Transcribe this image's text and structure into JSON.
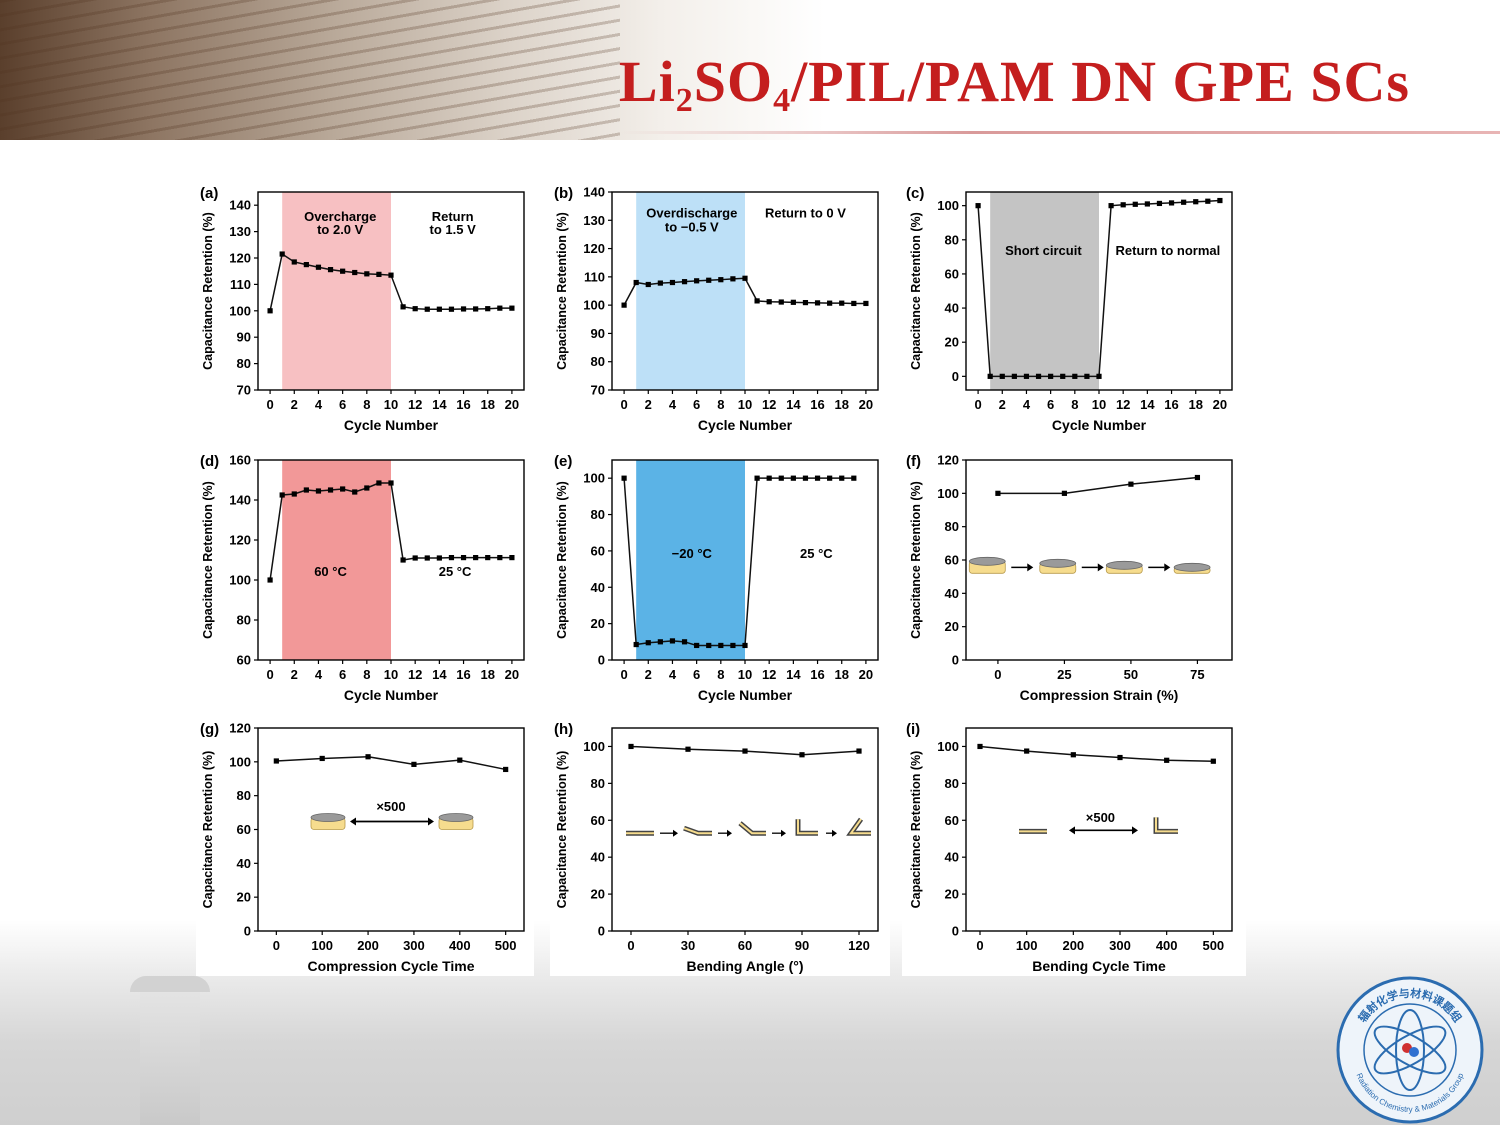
{
  "slide": {
    "title_prefix": "Li",
    "title_sub1": "2",
    "title_mid": "SO",
    "title_sub2": "4",
    "title_rest": "/PIL/PAM DN GPE SCs",
    "logo_text_top": "辐射化学与材料课题组",
    "logo_text_bottom": "Radiation Chemistry & Materials Group"
  },
  "colors": {
    "title": "#c41e1e",
    "overcharge_band": "#f7c0c2",
    "overdischarge_band": "#bde0f7",
    "short_band": "#c4c4c4",
    "heat_band": "#f29898",
    "cold_band": "#5bb3e6",
    "line": "#111111",
    "cap_gray": "#9a9a9a",
    "gel_yellow": "#f6dc8e"
  },
  "chart_data": [
    {
      "panel": "(a)",
      "type": "line",
      "xlabel": "Cycle Number",
      "ylabel": "Capacitance Retention (%)",
      "xlim": [
        -1,
        21
      ],
      "ylim": [
        70,
        145
      ],
      "xticks": [
        0,
        2,
        4,
        6,
        8,
        10,
        12,
        14,
        16,
        18,
        20
      ],
      "yticks": [
        70,
        80,
        90,
        100,
        110,
        120,
        130,
        140
      ],
      "band": {
        "from": 1,
        "to": 10,
        "color": "#f7c0c2"
      },
      "annotations": [
        {
          "text": "Overcharge",
          "x": 5.8,
          "y": 134
        },
        {
          "text": "to 2.0 V",
          "x": 5.8,
          "y": 129
        },
        {
          "text": "Return",
          "x": 15.1,
          "y": 134
        },
        {
          "text": "to 1.5 V",
          "x": 15.1,
          "y": 129
        }
      ],
      "x": [
        0,
        1,
        2,
        3,
        4,
        5,
        6,
        7,
        8,
        9,
        10,
        11,
        12,
        13,
        14,
        15,
        16,
        17,
        18,
        19,
        20
      ],
      "y": [
        100,
        121.5,
        118.5,
        117.5,
        116.5,
        115.6,
        115,
        114.5,
        114,
        113.8,
        113.5,
        101.5,
        100.8,
        100.6,
        100.6,
        100.6,
        100.7,
        100.7,
        100.8,
        101,
        101
      ]
    },
    {
      "panel": "(b)",
      "type": "line",
      "xlabel": "Cycle Number",
      "ylabel": "Capacitance Retention (%)",
      "xlim": [
        -1,
        21
      ],
      "ylim": [
        70,
        140
      ],
      "xticks": [
        0,
        2,
        4,
        6,
        8,
        10,
        12,
        14,
        16,
        18,
        20
      ],
      "yticks": [
        70,
        80,
        90,
        100,
        110,
        120,
        130,
        140
      ],
      "band": {
        "from": 1,
        "to": 10,
        "color": "#bde0f7"
      },
      "annotations": [
        {
          "text": "Overdischarge",
          "x": 5.6,
          "y": 131
        },
        {
          "text": "to −0.5 V",
          "x": 5.6,
          "y": 126
        },
        {
          "text": "Return to 0 V",
          "x": 15,
          "y": 131
        }
      ],
      "x": [
        0,
        1,
        2,
        3,
        4,
        5,
        6,
        7,
        8,
        9,
        10,
        11,
        12,
        13,
        14,
        15,
        16,
        17,
        18,
        19,
        20
      ],
      "y": [
        100,
        108,
        107.3,
        107.8,
        108,
        108.3,
        108.6,
        108.8,
        109,
        109.3,
        109.5,
        101.5,
        101.2,
        101.1,
        101,
        100.9,
        100.8,
        100.7,
        100.7,
        100.6,
        100.6
      ]
    },
    {
      "panel": "(c)",
      "type": "line",
      "xlabel": "Cycle Number",
      "ylabel": "Capacitance Retention (%)",
      "xlim": [
        -1,
        21
      ],
      "ylim": [
        -8,
        108
      ],
      "xticks": [
        0,
        2,
        4,
        6,
        8,
        10,
        12,
        14,
        16,
        18,
        20
      ],
      "yticks": [
        0,
        20,
        40,
        60,
        80,
        100
      ],
      "band": {
        "from": 1,
        "to": 10,
        "color": "#c4c4c4"
      },
      "annotations": [
        {
          "text": "Short circuit",
          "x": 5.4,
          "y": 71
        },
        {
          "text": "Return to normal",
          "x": 15.7,
          "y": 71
        }
      ],
      "x": [
        0,
        1,
        2,
        3,
        4,
        5,
        6,
        7,
        8,
        9,
        10,
        11,
        12,
        13,
        14,
        15,
        16,
        17,
        18,
        19,
        20
      ],
      "y": [
        100,
        0,
        0,
        0,
        0,
        0,
        0,
        0,
        0,
        0,
        0,
        100,
        100.5,
        100.8,
        101,
        101.3,
        101.6,
        102,
        102.3,
        102.6,
        103
      ]
    },
    {
      "panel": "(d)",
      "type": "line",
      "xlabel": "Cycle Number",
      "ylabel": "Capacitance Retention (%)",
      "xlim": [
        -1,
        21
      ],
      "ylim": [
        60,
        160
      ],
      "xticks": [
        0,
        2,
        4,
        6,
        8,
        10,
        12,
        14,
        16,
        18,
        20
      ],
      "yticks": [
        60,
        80,
        100,
        120,
        140,
        160
      ],
      "band": {
        "from": 1,
        "to": 10,
        "color": "#f29898"
      },
      "annotations": [
        {
          "text": "60 °C",
          "x": 5,
          "y": 102
        },
        {
          "text": "25 °C",
          "x": 15.3,
          "y": 102
        }
      ],
      "x": [
        0,
        1,
        2,
        3,
        4,
        5,
        6,
        7,
        8,
        9,
        10,
        11,
        12,
        13,
        14,
        15,
        16,
        17,
        18,
        19,
        20
      ],
      "y": [
        100,
        142.5,
        143,
        145,
        144.5,
        145,
        145.5,
        144,
        146,
        148.5,
        148.5,
        110,
        111,
        111,
        111,
        111.2,
        111.2,
        111.2,
        111.2,
        111.2,
        111.2
      ]
    },
    {
      "panel": "(e)",
      "type": "line",
      "xlabel": "Cycle Number",
      "ylabel": "Capacitance Retention (%)",
      "xlim": [
        -1,
        21
      ],
      "ylim": [
        0,
        110
      ],
      "xticks": [
        0,
        2,
        4,
        6,
        8,
        10,
        12,
        14,
        16,
        18,
        20
      ],
      "yticks": [
        0,
        20,
        40,
        60,
        80,
        100
      ],
      "band": {
        "from": 1,
        "to": 10,
        "color": "#5bb3e6"
      },
      "annotations": [
        {
          "text": "−20 °C",
          "x": 5.6,
          "y": 56
        },
        {
          "text": "25 °C",
          "x": 15.9,
          "y": 56
        }
      ],
      "x": [
        0,
        1,
        2,
        3,
        4,
        5,
        6,
        7,
        8,
        9,
        10,
        11,
        12,
        13,
        14,
        15,
        16,
        17,
        18,
        19
      ],
      "y": [
        100,
        8.5,
        9.5,
        10,
        10.5,
        10,
        8,
        8,
        8,
        8,
        8,
        100,
        100,
        100,
        100,
        100,
        100,
        100,
        100,
        100
      ]
    },
    {
      "panel": "(f)",
      "type": "line",
      "xlabel": "Compression Strain (%)",
      "ylabel": "Capacitance Retention (%)",
      "xlim": [
        -12,
        88
      ],
      "ylim": [
        0,
        120
      ],
      "xticks": [
        0,
        25,
        50,
        75
      ],
      "yticks": [
        0,
        20,
        40,
        60,
        80,
        100,
        120
      ],
      "x": [
        0,
        25,
        50,
        75
      ],
      "y": [
        100,
        100,
        105.5,
        109.5
      ]
    },
    {
      "panel": "(g)",
      "type": "line",
      "xlabel": "Compression Cycle Time",
      "ylabel": "Capacitance Retention (%)",
      "xlim": [
        -40,
        540
      ],
      "ylim": [
        0,
        120
      ],
      "xticks": [
        0,
        100,
        200,
        300,
        400,
        500
      ],
      "yticks": [
        0,
        20,
        40,
        60,
        80,
        100,
        120
      ],
      "annotations": [
        {
          "text": "×500",
          "x": 250,
          "y": 71
        }
      ],
      "x": [
        0,
        100,
        200,
        300,
        400,
        500
      ],
      "y": [
        100.5,
        102,
        103,
        98.5,
        101,
        95.5
      ]
    },
    {
      "panel": "(h)",
      "type": "line",
      "xlabel": "Bending Angle (°)",
      "ylabel": "Capacitance Retention (%)",
      "xlim": [
        -10,
        130
      ],
      "ylim": [
        0,
        110
      ],
      "xticks": [
        0,
        30,
        60,
        90,
        120
      ],
      "yticks": [
        0,
        20,
        40,
        60,
        80,
        100
      ],
      "x": [
        0,
        30,
        60,
        90,
        120
      ],
      "y": [
        100,
        98.5,
        97.5,
        95.5,
        97.5
      ]
    },
    {
      "panel": "(i)",
      "type": "line",
      "xlabel": "Bending Cycle Time",
      "ylabel": "Capacitance Retention (%)",
      "xlim": [
        -30,
        540
      ],
      "ylim": [
        0,
        110
      ],
      "xticks": [
        0,
        100,
        200,
        300,
        400,
        500
      ],
      "yticks": [
        0,
        20,
        40,
        60,
        80,
        100
      ],
      "annotations": [
        {
          "text": "×500",
          "x": 258,
          "y": 59
        }
      ],
      "x": [
        0,
        100,
        200,
        300,
        400,
        500
      ],
      "y": [
        100,
        97.5,
        95.5,
        94,
        92.5,
        92
      ]
    }
  ]
}
